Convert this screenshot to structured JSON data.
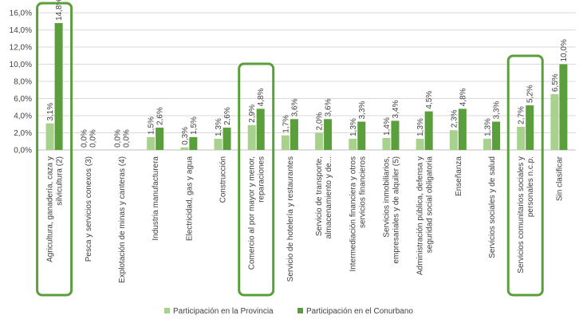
{
  "chart_data": {
    "type": "bar",
    "title": "",
    "xlabel": "",
    "ylabel": "",
    "ylim": [
      0,
      16
    ],
    "yticks": [
      0,
      2,
      4,
      6,
      8,
      10,
      12,
      14,
      16
    ],
    "ytick_labels": [
      "0,0%",
      "2,0%",
      "4,0%",
      "6,0%",
      "8,0%",
      "10,0%",
      "12,0%",
      "14,0%",
      "16,0%"
    ],
    "grid": true,
    "legend_position": "bottom",
    "categories": [
      "Agricultura, ganadería, caza y silvicultura (2)",
      "Pesca y servicios conexos (3)",
      "Explotación de minas y canteras (4)",
      "Industria manufacturera",
      "Electricidad, gas y agua",
      "Construcción",
      "Comercio al por mayor y menor, reparaciones",
      "Servicio de hotelería y restaurantes",
      "Servicio de transporte, almacenamiento y de...",
      "Intermediación financiera y otros servicios financieros",
      "Servicios inmobiliarios, empresariales y de alquiler (5)",
      "Administración pública, defensa y seguridad social obligatoria",
      "Enseñanza",
      "Servicios sociales y de salud",
      "Servicios comunitarios sociales y personales n.c.p.",
      "Sin clasificar"
    ],
    "category_lines": [
      [
        "Agricultura, ganadería, caza y",
        "silvicultura (2)"
      ],
      [
        "Pesca y servicios conexos (3)"
      ],
      [
        "Explotación de minas y canteras (4)"
      ],
      [
        "Industria manufacturera"
      ],
      [
        "Electricidad, gas y agua"
      ],
      [
        "Construcción"
      ],
      [
        "Comercio al por mayor y menor,",
        "reparaciones"
      ],
      [
        "Servicio de hotelería y restaurantes"
      ],
      [
        "Servicio de transporte,",
        "almacenamiento y de..."
      ],
      [
        "Intermediación financiera y otros",
        "servicios financieros"
      ],
      [
        "Servicios inmobiliarios,",
        "empresariales y de alquiler (5)"
      ],
      [
        "Administración pública, defensa y",
        "seguridad social obligatoria"
      ],
      [
        "Enseñanza"
      ],
      [
        "Servicios sociales y de salud"
      ],
      [
        "Servicios comunitarios sociales y",
        "personales n.c.p."
      ],
      [
        "Sin clasificar"
      ]
    ],
    "series": [
      {
        "name": "Participación en la Provincia",
        "color": "#a9d18e",
        "values": [
          3.1,
          0.0,
          0.0,
          1.5,
          0.3,
          1.3,
          2.9,
          1.7,
          2.0,
          1.3,
          1.4,
          1.3,
          2.3,
          1.3,
          2.7,
          6.5
        ],
        "labels": [
          "3,1%",
          "0,0%",
          "0,0%",
          "1,5%",
          "0,3%",
          "1,3%",
          "2,9%",
          "1,7%",
          "2,0%",
          "1,3%",
          "1,4%",
          "1,3%",
          "2,3%",
          "1,3%",
          "2,7%",
          "6,5%"
        ]
      },
      {
        "name": "Participación en el Conurbano",
        "color": "#5b9e3c",
        "values": [
          14.8,
          0.0,
          0.0,
          2.6,
          1.5,
          2.6,
          4.8,
          3.6,
          3.6,
          3.3,
          3.4,
          4.5,
          4.8,
          3.3,
          5.2,
          10.0
        ],
        "labels": [
          "14,8%",
          "0,0%",
          "0,0%",
          "2,6%",
          "1,5%",
          "2,6%",
          "4,8%",
          "3,6%",
          "3,6%",
          "3,3%",
          "3,4%",
          "4,5%",
          "4,8%",
          "3,3%",
          "5,2%",
          "10,0%"
        ]
      }
    ],
    "highlighted_categories": [
      0,
      6,
      14
    ],
    "highlight_color": "#5b9e3c"
  }
}
